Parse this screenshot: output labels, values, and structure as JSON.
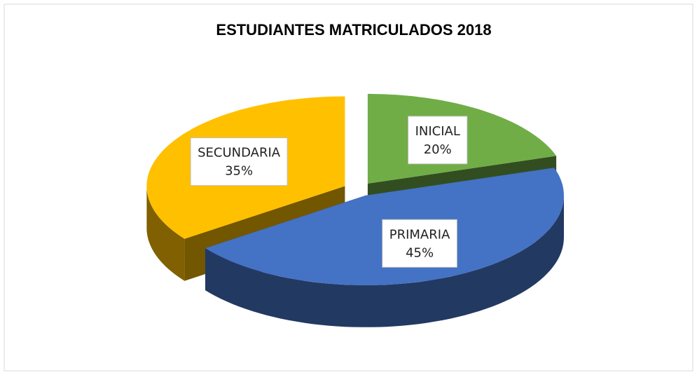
{
  "chart_data": {
    "type": "pie",
    "title": "ESTUDIANTES MATRICULADOS 2018",
    "categories": [
      "INICIAL",
      "PRIMARIA",
      "SECUNDARIA"
    ],
    "values": [
      20,
      45,
      35
    ],
    "value_labels": [
      "20%",
      "45%",
      "35%"
    ],
    "colors": [
      "#70ad47",
      "#4472c4",
      "#ffc000"
    ]
  }
}
